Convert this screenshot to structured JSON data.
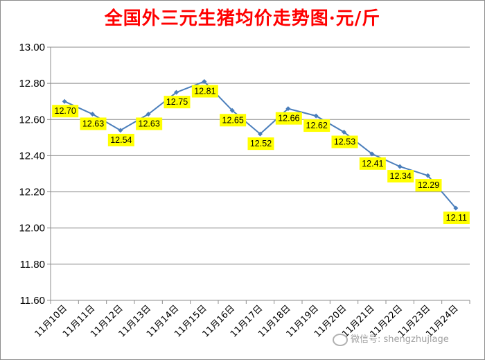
{
  "chart_data": {
    "type": "line",
    "title": "全国外三元生猪均价走势图·元/斤",
    "categories": [
      "11月10日",
      "11月11日",
      "11月12日",
      "11月13日",
      "11月14日",
      "11月15日",
      "11月16日",
      "11月17日",
      "11月18日",
      "11月19日",
      "11月20日",
      "11月21日",
      "11月22日",
      "11月23日",
      "11月24日"
    ],
    "series": [
      {
        "values": [
          12.7,
          12.63,
          12.54,
          12.63,
          12.75,
          12.81,
          12.65,
          12.52,
          12.66,
          12.62,
          12.53,
          12.41,
          12.34,
          12.29,
          12.11
        ]
      }
    ],
    "data_labels": [
      "12.70",
      "12.63",
      "12.54",
      "12.63",
      "12.75",
      "12.81",
      "12.65",
      "12.52",
      "12.66",
      "12.62",
      "12.53",
      "12.41",
      "12.34",
      "12.29",
      "12.11"
    ],
    "yticks": [
      "11.60",
      "11.80",
      "12.00",
      "12.20",
      "12.40",
      "12.60",
      "12.80",
      "13.00"
    ],
    "ylim": [
      11.6,
      13.0
    ],
    "grid": "horizontal",
    "legend": "none",
    "colors": {
      "line": "#4a7ebb",
      "label_bg": "#ffff00",
      "title": "#ff0000"
    }
  },
  "watermark": "微信号: shengzhujiage"
}
